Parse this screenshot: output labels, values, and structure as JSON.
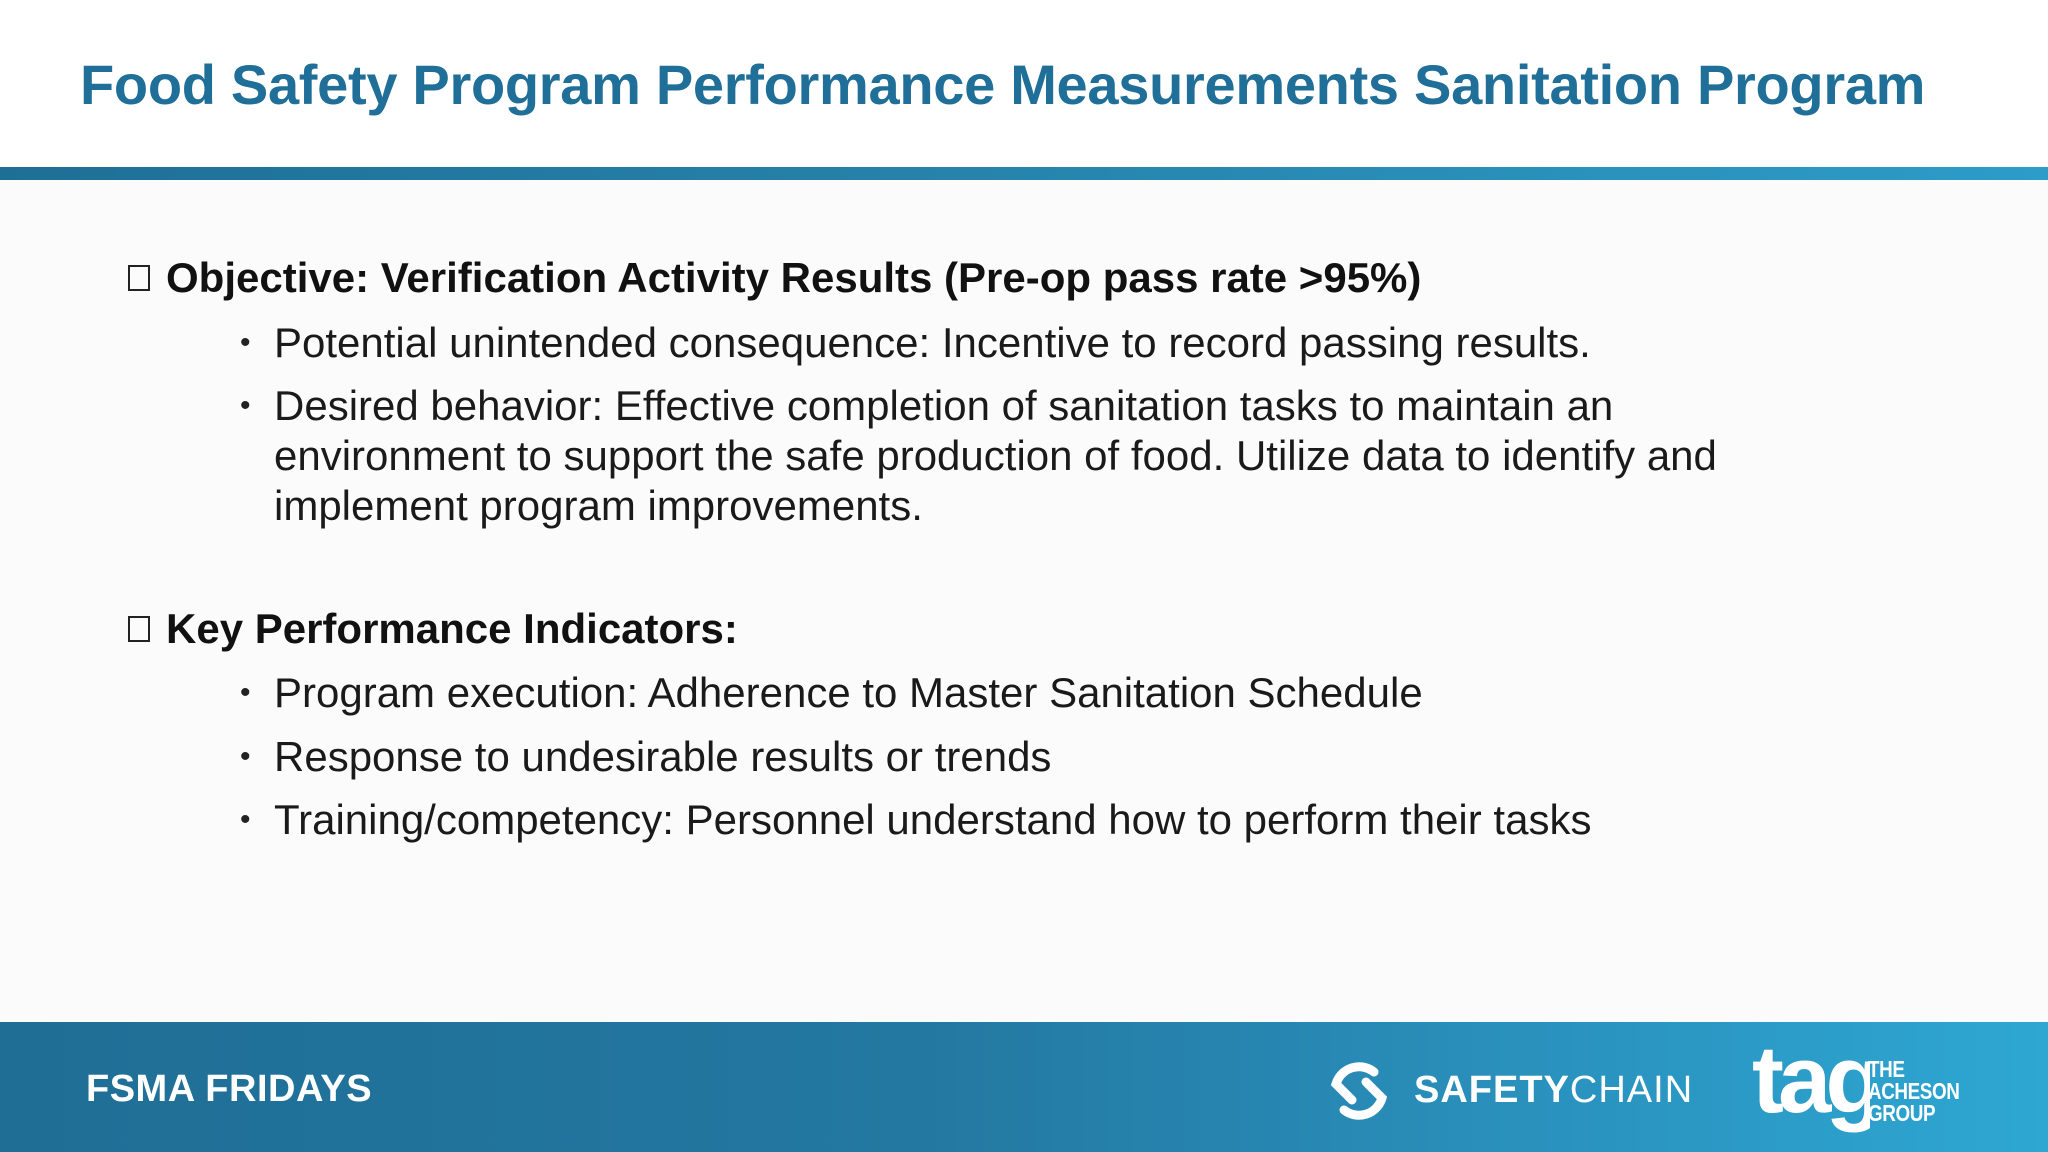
{
  "slide": {
    "title": "Food Safety Program Performance Measurements Sanitation Program"
  },
  "sections": [
    {
      "heading": "Objective: Verification Activity Results (Pre-op pass rate >95%)",
      "bullets": [
        "Potential unintended consequence: Incentive to record passing results.",
        "Desired behavior: Effective completion of sanitation tasks to maintain an environment to support the safe production of food. Utilize data to identify and implement program improvements."
      ]
    },
    {
      "heading": "Key Performance Indicators:",
      "bullets": [
        "Program execution: Adherence to Master Sanitation Schedule",
        "Response to undesirable results or trends",
        "Training/competency: Personnel understand how to perform their tasks"
      ]
    }
  ],
  "footer": {
    "label": "FSMA FRIDAYS",
    "safetychain_bold": "SAFETY",
    "safetychain_light": "CHAIN",
    "tag_logo_text": "tag",
    "tag_lines": [
      "THE",
      "ACHESON",
      "GROUP"
    ]
  },
  "colors": {
    "title": "#1f6f98",
    "rule": "#2580a8",
    "footer_start": "#1f6e96",
    "footer_end": "#2ea7d3"
  },
  "icons": {
    "section_marker": "box-icon",
    "bullet_marker": "bullet-dot-icon",
    "safetychain_logo": "safetychain-logo-icon",
    "tag_logo": "tag-logo-icon"
  }
}
